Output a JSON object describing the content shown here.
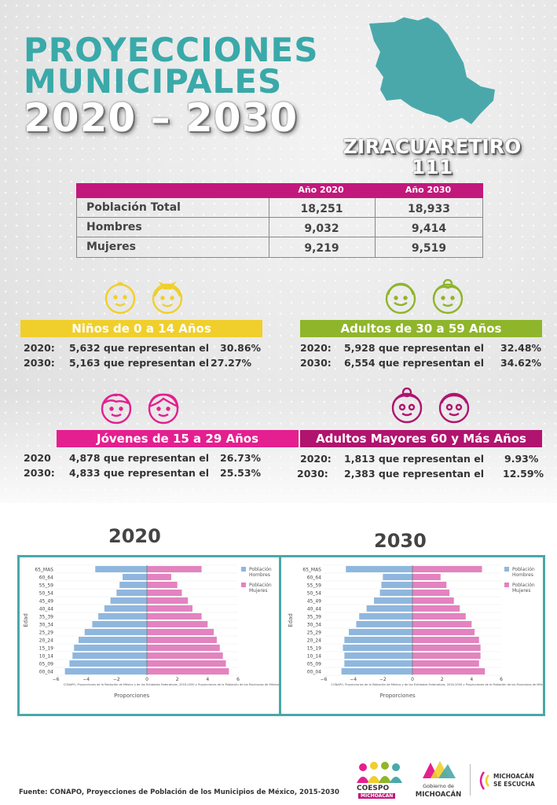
{
  "title": {
    "line1": "PROYECCIONES",
    "line2": "MUNICIPALES",
    "line3": "2020 – 2030"
  },
  "municipality": {
    "name": "ZIRACUARETIRO",
    "code": "111"
  },
  "summary": {
    "headers": [
      "Año 2020",
      "Año 2030"
    ],
    "rows": [
      {
        "label": "Población Total",
        "y2020": "18,251",
        "y2030": "18,933"
      },
      {
        "label": "Hombres",
        "y2020": "9,032",
        "y2030": "9,414"
      },
      {
        "label": "Mujeres",
        "y2020": "9,219",
        "y2030": "9,519"
      }
    ]
  },
  "groups": {
    "ninos": {
      "title": "Niños de 0 a 14 Años",
      "color": "#f0cf2c",
      "rows": [
        {
          "year": "2020:",
          "text": "5,632 que representan el",
          "pct": "30.86%"
        },
        {
          "year": "2030:",
          "text": "5,163 que representan el",
          "pct": "27.27%"
        }
      ]
    },
    "adultos": {
      "title": "Adultos de 30 a 59 Años",
      "color": "#8fb52b",
      "rows": [
        {
          "year": "2020:",
          "text": "5,928 que representan el",
          "pct": "32.48%"
        },
        {
          "year": "2030:",
          "text": "6,554 que representan el",
          "pct": "34.62%"
        }
      ]
    },
    "jovenes": {
      "title": "Jóvenes de 15 a 29 Años",
      "color": "#e41f8f",
      "rows": [
        {
          "year": "2020",
          "text": "4,878 que representan el",
          "pct": "26.73%"
        },
        {
          "year": "2030:",
          "text": "4,833 que representan el",
          "pct": "25.53%"
        }
      ]
    },
    "mayores": {
      "title": "Adultos Mayores  60 y Más Años",
      "color": "#b0146e",
      "rows": [
        {
          "year": "2020:",
          "text": "1,813 que representan el",
          "pct": "9.93%"
        },
        {
          "year": "2030:",
          "text": "2,383 que representan el",
          "pct": "12.59%"
        }
      ]
    }
  },
  "chart_data": [
    {
      "type": "bar",
      "title": "2020",
      "xlabel": "Proporciones",
      "ylabel": "Edad",
      "categories": [
        "00_04",
        "05_09",
        "10_14",
        "15_19",
        "20_24",
        "25_29",
        "30_34",
        "35_39",
        "40_44",
        "45_49",
        "50_54",
        "55_59",
        "60_64",
        "65_MAS"
      ],
      "series": [
        {
          "name": "Población Hombres",
          "color": "#8fb7de",
          "values": [
            -5.4,
            -5.1,
            -4.9,
            -4.8,
            -4.5,
            -4.1,
            -3.6,
            -3.2,
            -2.8,
            -2.4,
            -2.0,
            -1.8,
            -1.6,
            -3.4
          ]
        },
        {
          "name": "Población Mujeres",
          "color": "#e383bf",
          "values": [
            5.4,
            5.2,
            5.0,
            4.8,
            4.6,
            4.4,
            4.0,
            3.6,
            3.0,
            2.7,
            2.3,
            2.0,
            1.6,
            3.6
          ]
        }
      ],
      "xlim": [
        -6,
        6
      ],
      "xticks": [
        "−6",
        "−4",
        "−2",
        "0",
        "2",
        "4",
        "6"
      ],
      "note": "CONAPO, Proyecciones de la Población de México y de las Entidades Federativas, 2016-2050 y Proyecciones de la Población de los Municipios de México,",
      "legend": "top-right"
    },
    {
      "type": "bar",
      "title": "2030",
      "xlabel": "Proporciones",
      "ylabel": "Edad",
      "categories": [
        "00_04",
        "05_09",
        "10_14",
        "15_19",
        "20_24",
        "25_29",
        "30_34",
        "35_39",
        "40_44",
        "45_49",
        "50_54",
        "55_59",
        "60_64",
        "65_MAS"
      ],
      "series": [
        {
          "name": "Población Hombres",
          "color": "#8fb7de",
          "values": [
            -4.8,
            -4.6,
            -4.6,
            -4.7,
            -4.6,
            -4.3,
            -3.8,
            -3.6,
            -3.1,
            -2.6,
            -2.2,
            -2.1,
            -2.0,
            -4.5
          ]
        },
        {
          "name": "Población Mujeres",
          "color": "#e383bf",
          "values": [
            4.9,
            4.5,
            4.6,
            4.6,
            4.5,
            4.2,
            4.0,
            3.6,
            3.2,
            2.8,
            2.5,
            2.3,
            1.9,
            4.7
          ]
        }
      ],
      "xlim": [
        -6,
        6
      ],
      "xticks": [
        "−6",
        "−4",
        "−2",
        "0",
        "2",
        "4",
        "6"
      ],
      "note": "CONAPO, Proyecciones de la Población de México y de las Entidades Federativas, 2016-2050 y Proyecciones de la Población de los Municipios de México,",
      "legend": "top-right"
    }
  ],
  "footer": {
    "source": "Fuente: CONAPO, Proyecciones de Población de los Municipios de México, 2015-2030",
    "logos": {
      "coespo_1": "COESPO",
      "coespo_2": "MICHOACÁN",
      "gob_1": "Gobierno de",
      "gob_2": "MICHOACÁN",
      "escucha_1": "MICHOACÁN",
      "escucha_2": "SE ESCUCHA"
    }
  }
}
